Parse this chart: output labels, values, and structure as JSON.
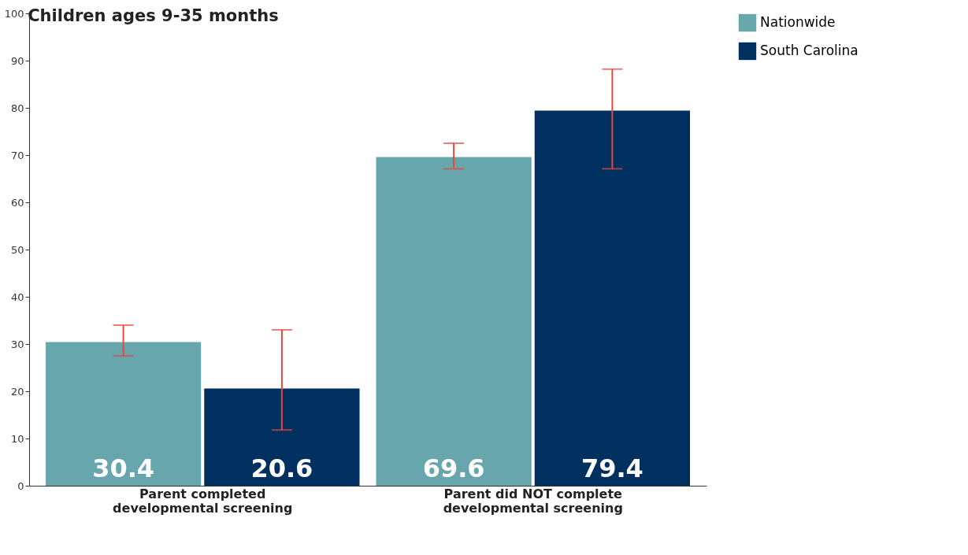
{
  "chart_data": {
    "type": "bar",
    "title": "Children ages 9-35 months",
    "categories": [
      "Parent completed developmental screening",
      "Parent did NOT complete developmental screening"
    ],
    "series": [
      {
        "name": "Nationwide",
        "color": "#68a6ad",
        "values": [
          30.4,
          69.6
        ],
        "errors": [
          [
            27.5,
            34.0
          ],
          [
            67.1,
            72.5
          ]
        ]
      },
      {
        "name": "South Carolina",
        "color": "#00305f",
        "values": [
          20.6,
          79.4
        ],
        "errors": [
          [
            11.8,
            33.0
          ],
          [
            67.1,
            88.2
          ]
        ]
      }
    ],
    "ylim": [
      0,
      100
    ],
    "yticks": [
      0,
      10,
      20,
      30,
      40,
      50,
      60,
      70,
      80,
      90,
      100
    ],
    "data_labels": true,
    "grid": false,
    "legend": "top right"
  }
}
